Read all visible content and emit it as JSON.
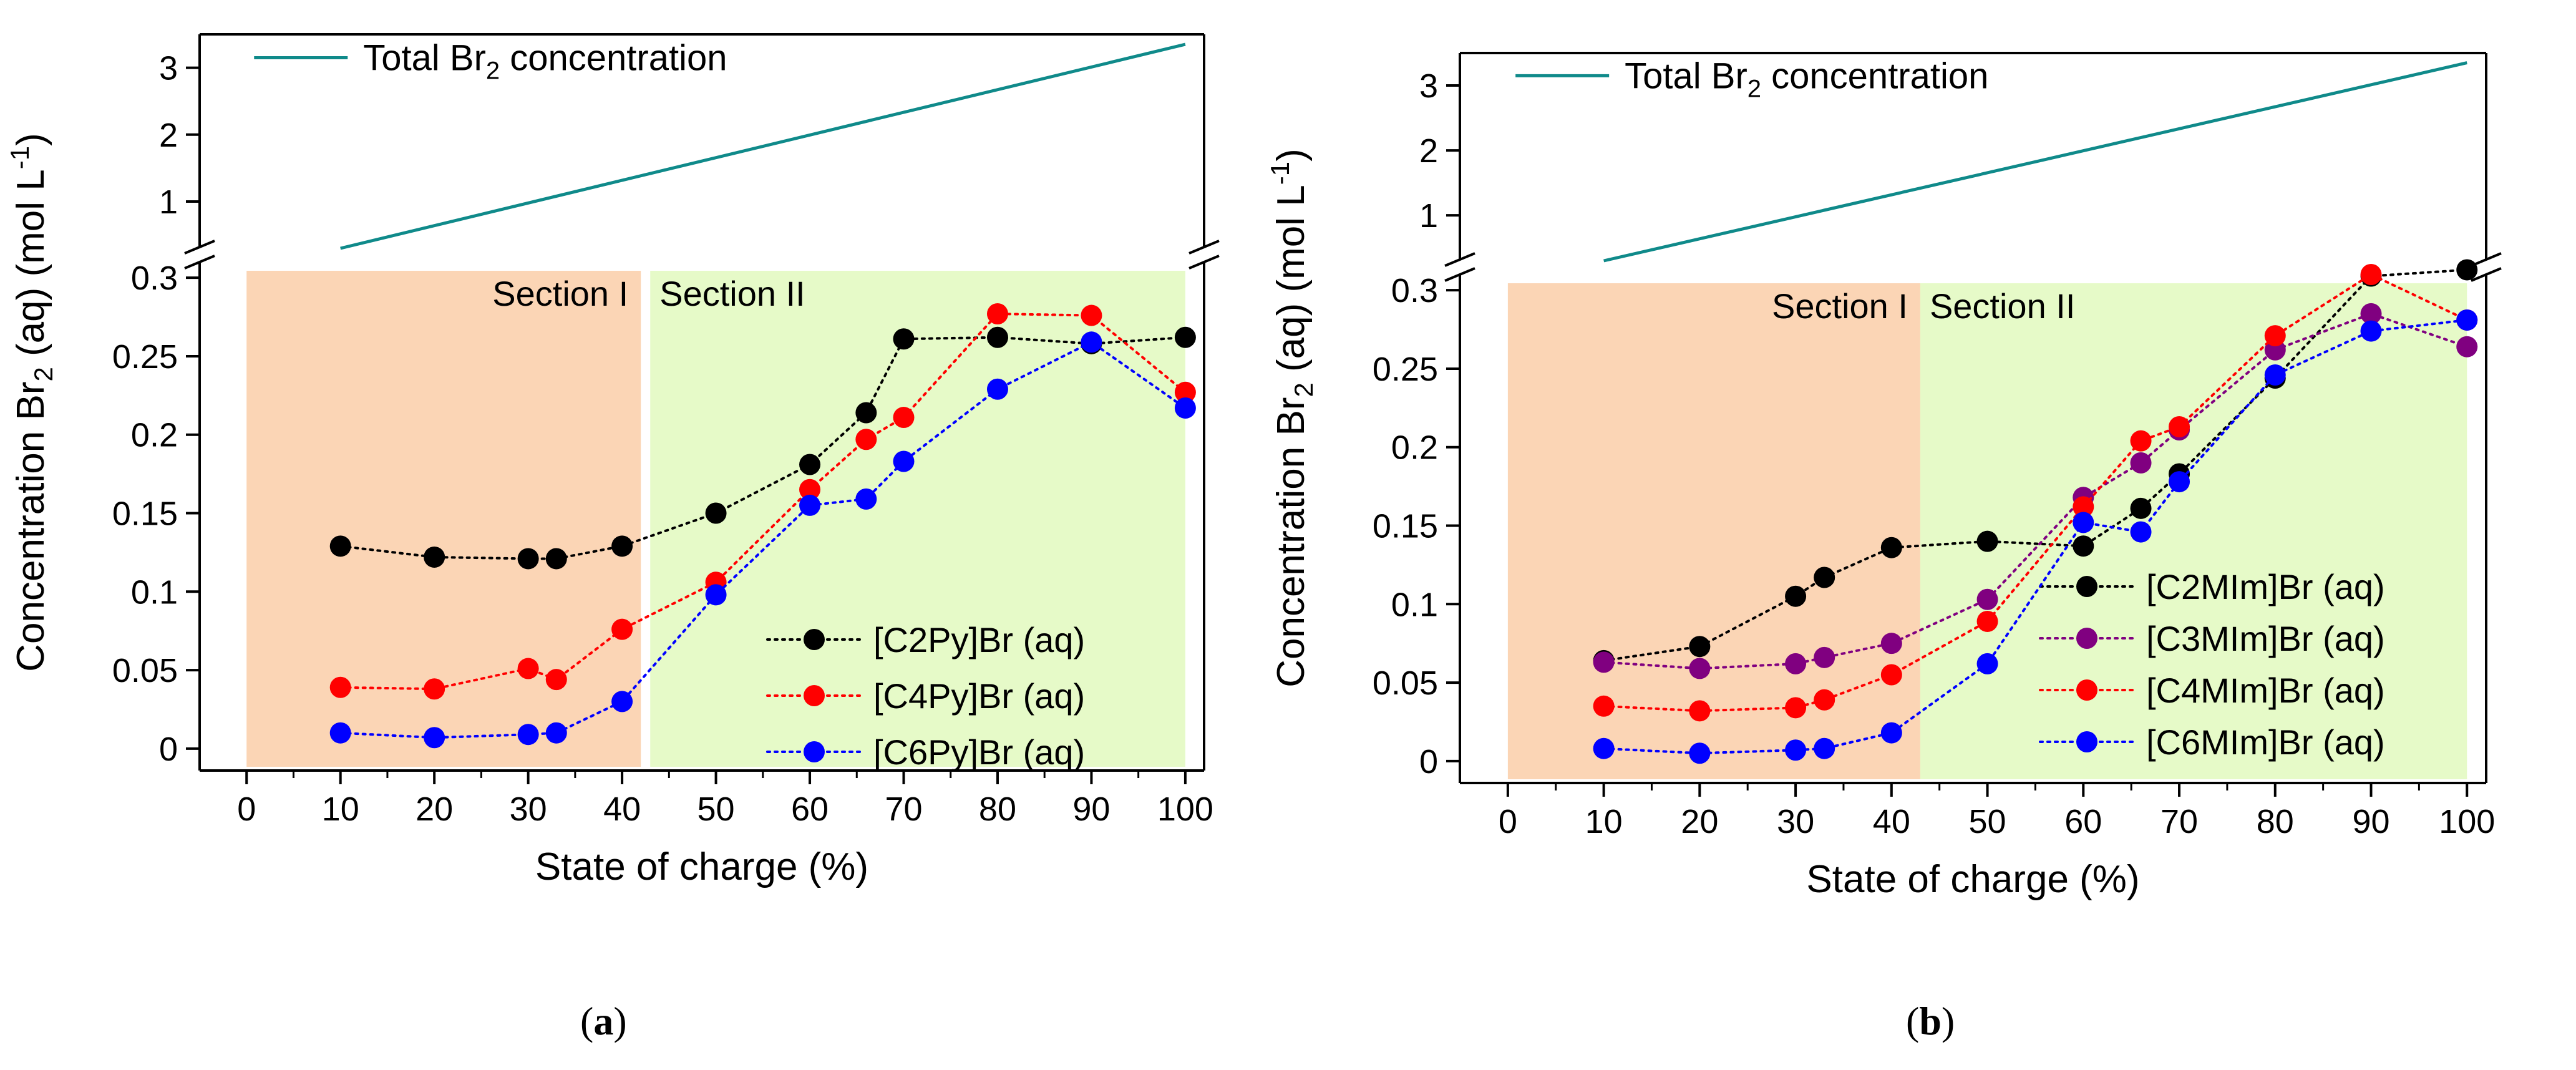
{
  "chart_data": [
    {
      "panel": "a",
      "type": "line",
      "xlabel": "State of charge (%)",
      "ylabel_base": "Concentration Br",
      "ylabel_sub": "2",
      "ylabel_tail": " (aq) (mol L",
      "ylabel_sup": "-1",
      "ylabel_end": ")",
      "xlim": [
        -5,
        102
      ],
      "xticks": [
        0,
        10,
        20,
        30,
        40,
        50,
        60,
        70,
        80,
        90,
        100
      ],
      "lower_ylim": [
        -0.01,
        0.31
      ],
      "lower_yticks": [
        0,
        0.05,
        0.1,
        0.15,
        0.2,
        0.25,
        0.3
      ],
      "lower_ytick_labels": [
        "0",
        "0.05",
        "0.1",
        "0.15",
        "0.2",
        "0.25",
        "0.3"
      ],
      "upper_ylim": [
        0.3,
        3.5
      ],
      "upper_yticks": [
        1,
        2,
        3
      ],
      "upper_ytick_labels": [
        "1",
        "2",
        "3"
      ],
      "sections": [
        {
          "label": "Section I",
          "from": 0,
          "to": 42,
          "color": "#fbd5b5"
        },
        {
          "label": "Section II",
          "from": 43,
          "to": 100,
          "color": "#e6fac8"
        }
      ],
      "total_line": {
        "name_pre": "Total Br",
        "name_sub": "2",
        "name_post": " concentration",
        "color": "#0f8a8a",
        "x": [
          10,
          100
        ],
        "y": [
          0.3,
          3.35
        ]
      },
      "series": [
        {
          "name": "[C2Py]Br (aq)",
          "color": "#000000",
          "x": [
            10,
            20,
            30,
            33,
            40,
            50,
            60,
            66,
            70,
            80,
            90,
            100
          ],
          "y": [
            0.129,
            0.122,
            0.121,
            0.121,
            0.129,
            0.15,
            0.181,
            0.214,
            0.261,
            0.262,
            0.258,
            0.262
          ]
        },
        {
          "name": "[C4Py]Br (aq)",
          "color": "#ff0000",
          "x": [
            10,
            20,
            30,
            33,
            40,
            50,
            60,
            66,
            70,
            80,
            90,
            100
          ],
          "y": [
            0.039,
            0.038,
            0.051,
            0.044,
            0.076,
            0.106,
            0.165,
            0.197,
            0.211,
            0.277,
            0.276,
            0.227
          ]
        },
        {
          "name": "[C6Py]Br (aq)",
          "color": "#0000ff",
          "x": [
            10,
            20,
            30,
            33,
            40,
            50,
            60,
            66,
            70,
            80,
            90,
            100
          ],
          "y": [
            0.01,
            0.007,
            0.009,
            0.01,
            0.03,
            0.098,
            0.155,
            0.159,
            0.183,
            0.229,
            0.259,
            0.217
          ]
        }
      ],
      "legend_position": "bottom-right"
    },
    {
      "panel": "b",
      "type": "line",
      "xlabel": "State of charge (%)",
      "ylabel_base": "Concentration Br",
      "ylabel_sub": "2",
      "ylabel_tail": " (aq) (mol L",
      "ylabel_sup": "-1",
      "ylabel_end": ")",
      "xlim": [
        -5,
        102
      ],
      "xticks": [
        0,
        10,
        20,
        30,
        40,
        50,
        60,
        70,
        80,
        90,
        100
      ],
      "lower_ylim": [
        -0.01,
        0.31
      ],
      "lower_yticks": [
        0,
        0.05,
        0.1,
        0.15,
        0.2,
        0.25,
        0.3
      ],
      "lower_ytick_labels": [
        "0",
        "0.05",
        "0.1",
        "0.15",
        "0.2",
        "0.25",
        "0.3"
      ],
      "upper_ylim": [
        0.3,
        3.5
      ],
      "upper_yticks": [
        1,
        2,
        3
      ],
      "upper_ytick_labels": [
        "1",
        "2",
        "3"
      ],
      "sections": [
        {
          "label": "Section I",
          "from": 0,
          "to": 43,
          "color": "#fbd5b5"
        },
        {
          "label": "Section II",
          "from": 43,
          "to": 100,
          "color": "#e6fac8"
        }
      ],
      "total_line": {
        "name_pre": "Total Br",
        "name_sub": "2",
        "name_post": " concentration",
        "color": "#0f8a8a",
        "x": [
          10,
          100
        ],
        "y": [
          0.3,
          3.35
        ]
      },
      "series": [
        {
          "name": "[C2MIm]Br (aq)",
          "color": "#000000",
          "x": [
            10,
            20,
            30,
            33,
            40,
            50,
            60,
            66,
            70,
            80,
            90,
            100
          ],
          "y": [
            0.064,
            0.073,
            0.105,
            0.117,
            0.136,
            0.14,
            0.137,
            0.161,
            0.183,
            0.244,
            0.309,
            0.313
          ]
        },
        {
          "name": "[C3MIm]Br (aq)",
          "color": "#800080",
          "x": [
            10,
            20,
            30,
            33,
            40,
            50,
            60,
            66,
            70,
            80,
            90,
            100
          ],
          "y": [
            0.063,
            0.059,
            0.062,
            0.066,
            0.075,
            0.103,
            0.168,
            0.19,
            0.211,
            0.262,
            0.285,
            0.264
          ]
        },
        {
          "name": "[C4MIm]Br (aq)",
          "color": "#ff0000",
          "x": [
            10,
            20,
            30,
            33,
            40,
            50,
            60,
            66,
            70,
            80,
            90,
            100
          ],
          "y": [
            0.035,
            0.032,
            0.034,
            0.039,
            0.055,
            0.089,
            0.162,
            0.204,
            0.213,
            0.271,
            0.31,
            0.281
          ]
        },
        {
          "name": "[C6MIm]Br (aq)",
          "color": "#0000ff",
          "x": [
            10,
            20,
            30,
            33,
            40,
            50,
            60,
            66,
            70,
            80,
            90,
            100
          ],
          "y": [
            0.008,
            0.005,
            0.007,
            0.008,
            0.018,
            0.062,
            0.152,
            0.146,
            0.178,
            0.246,
            0.274,
            0.281
          ]
        }
      ],
      "legend_position": "bottom-right"
    }
  ],
  "panel_labels": {
    "a": "a",
    "b": "b"
  }
}
